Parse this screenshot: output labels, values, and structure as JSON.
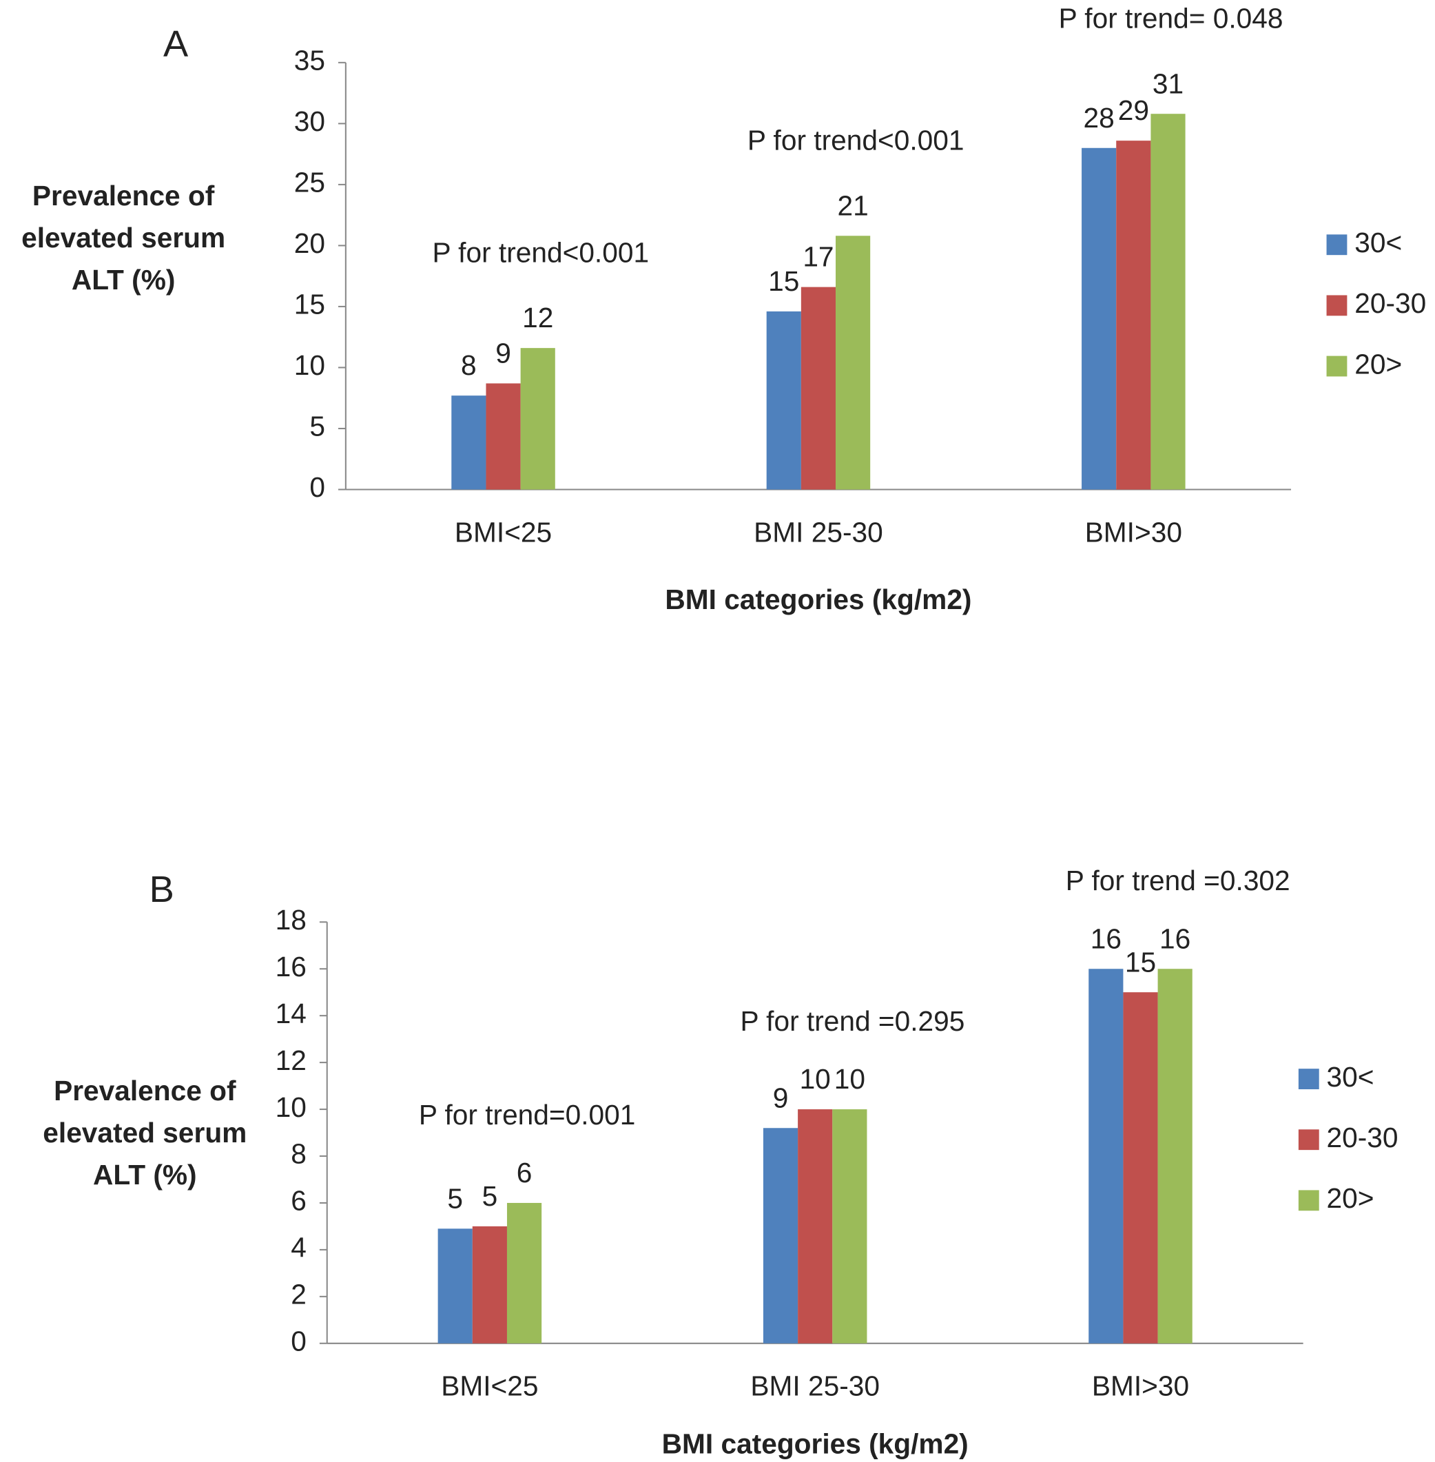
{
  "chart_data": [
    {
      "type": "bar",
      "panel_label": "A",
      "ylabel": [
        "Prevalence of",
        "elevated serum",
        "ALT (%)"
      ],
      "xlabel": "BMI categories (kg/m2)",
      "categories": [
        "BMI<25",
        "BMI 25-30",
        "BMI>30"
      ],
      "series": [
        {
          "name": "30<",
          "color": "#4f81bd",
          "values": [
            7.7,
            14.6,
            28.0
          ],
          "value_labels": [
            "8",
            "15",
            "28"
          ]
        },
        {
          "name": "20-30",
          "color": "#c0504d",
          "values": [
            8.7,
            16.6,
            28.6
          ],
          "value_labels": [
            "9",
            "17",
            "29"
          ]
        },
        {
          "name": "20>",
          "color": "#9bbb59",
          "values": [
            11.6,
            20.8,
            30.8
          ],
          "value_labels": [
            "12",
            "21",
            "31"
          ]
        }
      ],
      "annotations": [
        "P for trend<0.001",
        "P for trend<0.001",
        "P for trend= 0.048"
      ],
      "ylim": [
        0,
        35
      ],
      "yticks": [
        0,
        5,
        10,
        15,
        20,
        25,
        30,
        35
      ],
      "legend": "right"
    },
    {
      "type": "bar",
      "panel_label": "B",
      "ylabel": [
        "Prevalence of",
        "elevated serum",
        "ALT (%)"
      ],
      "xlabel": "BMI categories (kg/m2)",
      "categories": [
        "BMI<25",
        "BMI 25-30",
        "BMI>30"
      ],
      "series": [
        {
          "name": "30<",
          "color": "#4f81bd",
          "values": [
            4.9,
            9.2,
            16.0
          ],
          "value_labels": [
            "5",
            "9",
            "16"
          ]
        },
        {
          "name": "20-30",
          "color": "#c0504d",
          "values": [
            5.0,
            10.0,
            15.0
          ],
          "value_labels": [
            "5",
            "10",
            "15"
          ]
        },
        {
          "name": "20>",
          "color": "#9bbb59",
          "values": [
            6.0,
            10.0,
            16.0
          ],
          "value_labels": [
            "6",
            "10",
            "16"
          ]
        }
      ],
      "annotations": [
        "P for trend=0.001",
        "P for trend =0.295",
        "P for trend =0.302"
      ],
      "ylim": [
        0,
        18
      ],
      "yticks": [
        0,
        2,
        4,
        6,
        8,
        10,
        12,
        14,
        16,
        18
      ],
      "legend": "right"
    }
  ]
}
